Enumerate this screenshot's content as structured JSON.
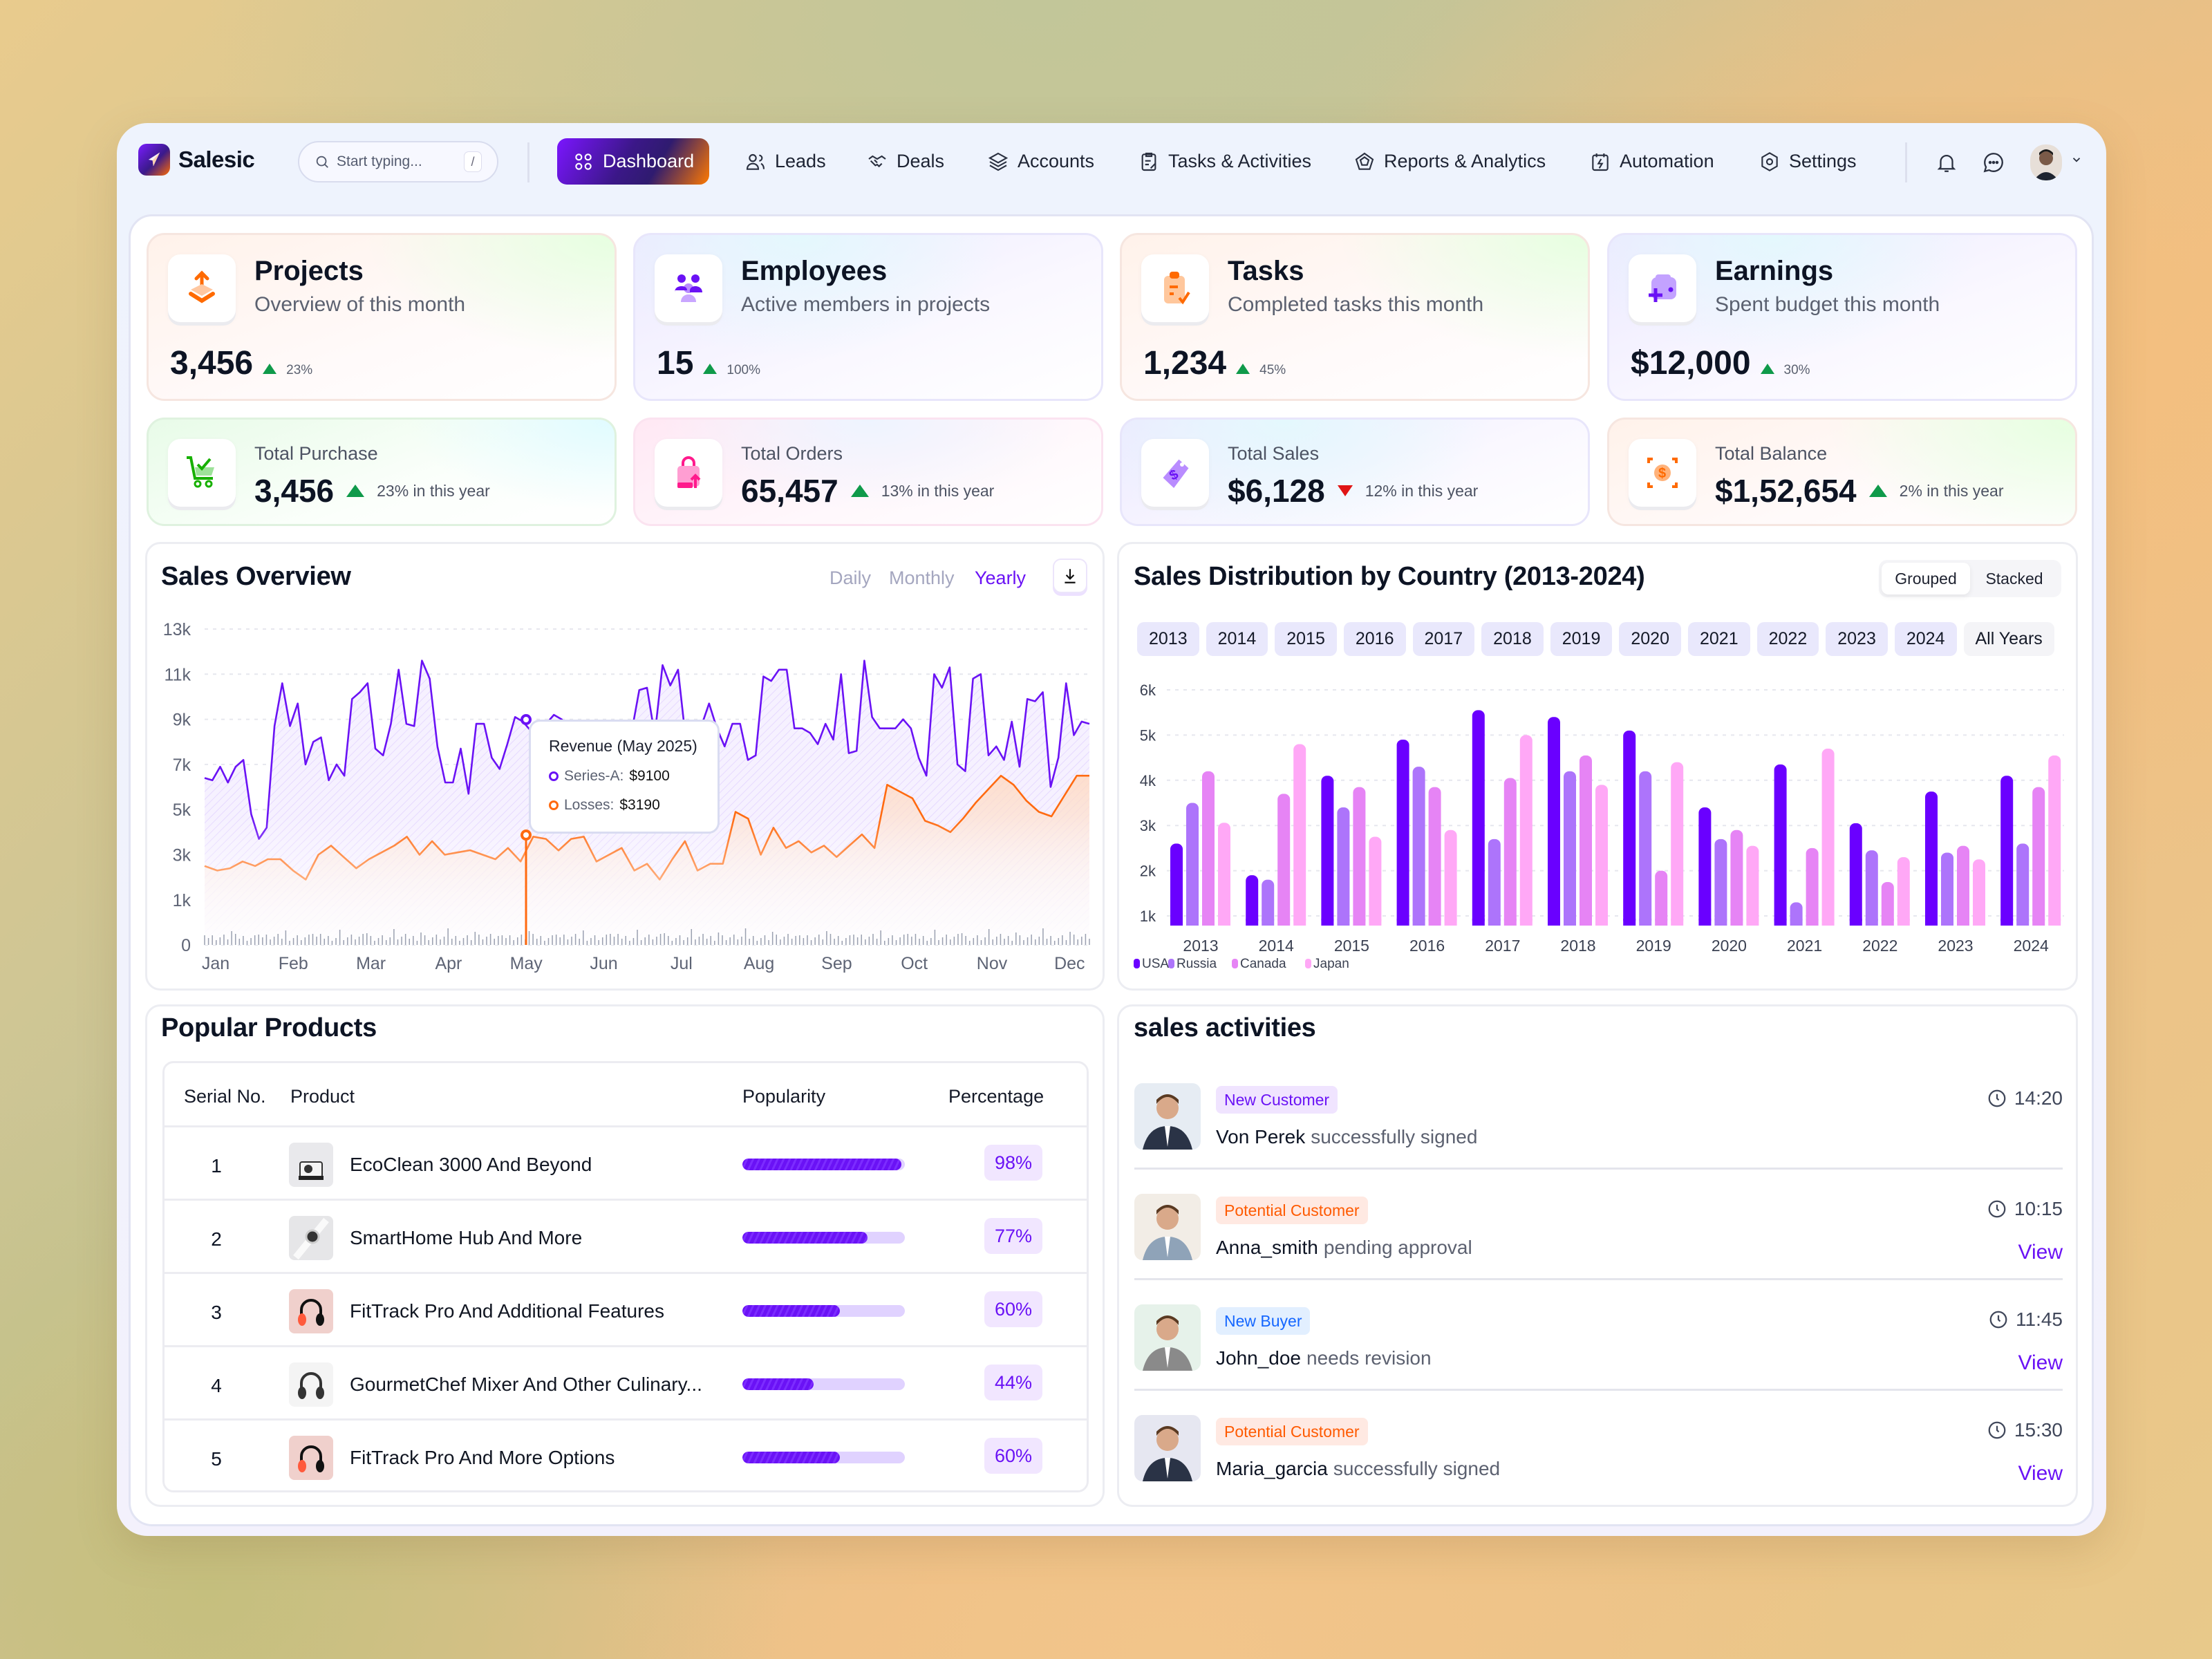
{
  "app": {
    "name": "Salesic"
  },
  "search": {
    "placeholder": "Start typing...",
    "shortcut": "/"
  },
  "nav": {
    "items": [
      {
        "label": "Dashboard",
        "icon": "dashboard-grid-icon",
        "active": true
      },
      {
        "label": "Leads",
        "icon": "users-icon"
      },
      {
        "label": "Deals",
        "icon": "handshake-icon"
      },
      {
        "label": "Accounts",
        "icon": "layers-icon"
      },
      {
        "label": "Tasks & Activities",
        "icon": "clipboard-icon"
      },
      {
        "label": "Reports & Analytics",
        "icon": "pentagon-chart-icon"
      },
      {
        "label": "Automation",
        "icon": "calendar-bolt-icon"
      },
      {
        "label": "Settings",
        "icon": "gear-icon"
      }
    ]
  },
  "header_icons": [
    "bell-icon",
    "chat-icon",
    "avatar",
    "chevron-down-icon"
  ],
  "summary_cards": [
    {
      "title": "Projects",
      "subtitle": "Overview of this month",
      "value": "3,456",
      "change": "23%",
      "trend": "up",
      "icon": "box-upload-icon"
    },
    {
      "title": "Employees",
      "subtitle": "Active members in projects",
      "value": "15",
      "change": "100%",
      "trend": "up",
      "icon": "team-icon"
    },
    {
      "title": "Tasks",
      "subtitle": "Completed tasks this month",
      "value": "1,234",
      "change": "45%",
      "trend": "up",
      "icon": "clipboard-check-icon"
    },
    {
      "title": "Earnings",
      "subtitle": "Spent budget this month",
      "value": "$12,000",
      "change": "30%",
      "trend": "up",
      "icon": "wallet-plus-icon"
    }
  ],
  "stat_cards": [
    {
      "label": "Total Purchase",
      "value": "3,456",
      "change": "23% in this year",
      "trend": "up",
      "icon": "cart-check-icon"
    },
    {
      "label": "Total Orders",
      "value": "65,457",
      "change": "13% in this year",
      "trend": "up",
      "icon": "shopping-bag-icon"
    },
    {
      "label": "Total Sales",
      "value": "$6,128",
      "change": "12% in this year",
      "trend": "down",
      "icon": "price-tag-icon"
    },
    {
      "label": "Total Balance",
      "value": "$1,52,654",
      "change": "2% in this year",
      "trend": "up",
      "icon": "coin-focus-icon"
    }
  ],
  "colors": {
    "accent": "#6a12f5",
    "up": "#0f9a4a",
    "down": "#e01515",
    "series_a": "#6a12f5",
    "losses": "#ff6a10"
  },
  "sales_overview": {
    "title": "Sales Overview",
    "periods": [
      "Daily",
      "Monthly",
      "Yearly"
    ],
    "active_period": "Yearly",
    "tooltip": {
      "title": "Revenue (May 2025)",
      "series_a_label": "Series-A:",
      "series_a_value": "$9100",
      "losses_label": "Losses:",
      "losses_value": "$3190"
    }
  },
  "sales_distribution": {
    "title": "Sales Distribution by Country (2013-2024)",
    "modes": [
      "Grouped",
      "Stacked"
    ],
    "active_mode": "Grouped",
    "year_filters": [
      "2013",
      "2014",
      "2015",
      "2016",
      "2017",
      "2018",
      "2019",
      "2020",
      "2021",
      "2022",
      "2023",
      "2024",
      "All Years"
    ]
  },
  "chart_data": [
    {
      "type": "area",
      "x_ticks": [
        "Jan",
        "Feb",
        "Mar",
        "Apr",
        "May",
        "Jun",
        "Jul",
        "Aug",
        "Sep",
        "Oct",
        "Nov",
        "Dec"
      ],
      "y_ticks": [
        "13k",
        "11k",
        "9k",
        "7k",
        "5k",
        "3k",
        "1k",
        "0"
      ],
      "grid": true,
      "series": [
        {
          "name": "Series-A",
          "color": "#6a12f5",
          "values_k": [
            6.4,
            6.3,
            6.9,
            6.2,
            6.9,
            7.2,
            4.8,
            3.7,
            4.2,
            8.7,
            10.6,
            8.7,
            9.7,
            7.0,
            8.0,
            8.2,
            6.3,
            7.0,
            6.5,
            9.9,
            10.2,
            10.6,
            7.7,
            7.4,
            8.8,
            11.2,
            8.8,
            8.7,
            11.6,
            10.8,
            7.8,
            6.2,
            6.2,
            7.7,
            5.7,
            8.8,
            8.8,
            7.3,
            6.8,
            7.9,
            9.1,
            8.9,
            8.5,
            8.5,
            8.8,
            9.2,
            9.0,
            8.6,
            8.0,
            7.8,
            7.2,
            7.8,
            8.4,
            8.0,
            7.6,
            8.4,
            10.3,
            10.4,
            8.3,
            11.4,
            10.5,
            11.2,
            8.1,
            8.6,
            8.7,
            9.7,
            8.6,
            7.8,
            8.8,
            8.8,
            7.2,
            7.4,
            10.9,
            10.7,
            11.2,
            11.2,
            8.6,
            8.6,
            8.4,
            7.9,
            8.8,
            8.1,
            11.0,
            7.5,
            7.6,
            11.6,
            9.1,
            8.6,
            8.6,
            8.6,
            9.0,
            8.6,
            7.3,
            6.5,
            11.0,
            10.4,
            11.3,
            7.0,
            6.7,
            10.8,
            11.0,
            7.4,
            7.8,
            7.2,
            8.9,
            6.9,
            9.9,
            9.8,
            10.2,
            6.0,
            7.3,
            10.6,
            8.3,
            8.9,
            8.8
          ]
        },
        {
          "name": "Losses",
          "color": "#ff6a10",
          "values_k": [
            2.5,
            2.3,
            2.4,
            2.7,
            2.5,
            2.8,
            2.8,
            2.3,
            1.9,
            3.0,
            3.4,
            2.9,
            2.4,
            2.8,
            3.1,
            3.4,
            3.8,
            3.0,
            3.6,
            3.0,
            3.1,
            3.2,
            3.0,
            2.8,
            3.3,
            2.7,
            3.8,
            3.7,
            3.19,
            3.7,
            3.8,
            2.7,
            3.0,
            3.3,
            2.3,
            2.6,
            1.9,
            2.8,
            3.6,
            2.3,
            2.6,
            2.6,
            4.9,
            4.6,
            3.0,
            4.2,
            3.3,
            3.6,
            3.1,
            3.4,
            2.9,
            3.4,
            3.9,
            3.3,
            6.1,
            5.8,
            5.5,
            4.5,
            4.3,
            4.0,
            4.6,
            5.3,
            5.9,
            6.5,
            6.1,
            5.4,
            4.9,
            4.7,
            5.6,
            6.5,
            6.5
          ]
        }
      ]
    },
    {
      "type": "bar",
      "mode": "grouped",
      "categories": [
        "2013",
        "2014",
        "2015",
        "2016",
        "2017",
        "2018",
        "2019",
        "2020",
        "2021",
        "2022",
        "2023",
        "2024"
      ],
      "y_ticks": [
        "6k",
        "5k",
        "4k",
        "3k",
        "2k",
        "1k"
      ],
      "grid": true,
      "legend": "bottom-left",
      "series": [
        {
          "name": "USA",
          "color": "#6a00ff",
          "values_k": [
            2.6,
            1.9,
            4.1,
            4.9,
            5.55,
            5.4,
            5.1,
            3.4,
            4.35,
            3.05,
            3.75,
            4.1
          ]
        },
        {
          "name": "Russia",
          "color": "#ad74fb",
          "values_k": [
            3.5,
            1.8,
            3.4,
            4.3,
            2.7,
            4.2,
            4.2,
            2.7,
            1.3,
            2.45,
            2.4,
            2.6
          ]
        },
        {
          "name": "Canada",
          "color": "#e684f5",
          "values_k": [
            4.2,
            3.7,
            3.85,
            3.85,
            4.05,
            4.55,
            2.0,
            2.9,
            2.5,
            1.75,
            2.55,
            3.85
          ]
        },
        {
          "name": "Japan",
          "color": "#ffa8f6",
          "values_k": [
            3.06,
            4.8,
            2.75,
            2.9,
            5.0,
            3.9,
            4.4,
            2.55,
            4.7,
            2.3,
            2.25,
            4.55
          ]
        }
      ]
    }
  ],
  "popular_products": {
    "title": "Popular Products",
    "columns": [
      "Serial No.",
      "Product",
      "Popularity",
      "Percentage"
    ],
    "rows": [
      {
        "serial": "1",
        "name": "EcoClean 3000 And Beyond",
        "popularity": 98,
        "percentage": "98%",
        "image": "camera"
      },
      {
        "serial": "2",
        "name": "SmartHome Hub And More",
        "popularity": 77,
        "percentage": "77%",
        "image": "smartwatch"
      },
      {
        "serial": "3",
        "name": "FitTrack Pro And Additional Features",
        "popularity": 60,
        "percentage": "60%",
        "image": "headphones-red"
      },
      {
        "serial": "4",
        "name": "GourmetChef Mixer And Other Culinary...",
        "popularity": 44,
        "percentage": "44%",
        "image": "headphones-black"
      },
      {
        "serial": "5",
        "name": "FitTrack Pro And More Options",
        "popularity": 60,
        "percentage": "60%",
        "image": "headphones-red"
      }
    ]
  },
  "sales_activities": {
    "title": "sales activities",
    "view_label": "View",
    "items": [
      {
        "badge": "New Customer",
        "badge_type": "purple",
        "name": "Von Perek",
        "action": "successfully signed",
        "time": "14:20",
        "has_view": false
      },
      {
        "badge": "Potential Customer",
        "badge_type": "orange",
        "name": "Anna_smith",
        "action": "pending approval",
        "time": "10:15",
        "has_view": true
      },
      {
        "badge": "New Buyer",
        "badge_type": "blue",
        "name": "John_doe",
        "action": "needs revision",
        "time": "11:45",
        "has_view": true
      },
      {
        "badge": "Potential Customer",
        "badge_type": "orange",
        "name": "Maria_garcia",
        "action": "successfully signed",
        "time": "15:30",
        "has_view": true
      }
    ]
  }
}
